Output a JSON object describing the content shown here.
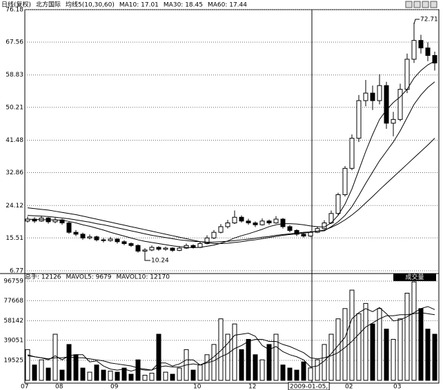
{
  "chart_data": [
    {
      "type": "candlestick",
      "header": [
        "日线(复权)",
        "北方国际",
        "均线5(10,30,60)",
        "MA10: 17.01",
        "MA30: 18.45",
        "MA60: 17.44"
      ],
      "categories": [
        "07",
        null,
        null,
        null,
        null,
        "08",
        null,
        null,
        null,
        null,
        null,
        null,
        null,
        "09",
        null,
        null,
        null,
        null,
        null,
        null,
        null,
        null,
        null,
        null,
        null,
        "10",
        null,
        null,
        null,
        null,
        null,
        null,
        null,
        "12",
        null,
        null,
        null,
        null,
        null,
        "2009-01-05,",
        null,
        null,
        null,
        null,
        null,
        null,
        null,
        "02",
        null,
        null,
        null,
        null,
        null,
        null,
        "03",
        null,
        null,
        null,
        null,
        null
      ],
      "open": [
        20.0,
        20.5,
        20.0,
        20.8,
        19.8,
        20.3,
        19.5,
        17.0,
        16.5,
        15.5,
        15.8,
        15.0,
        14.8,
        15.2,
        14.5,
        14.0,
        13.5,
        12.0,
        12.3,
        13.0,
        12.5,
        12.8,
        12.2,
        12.8,
        13.5,
        13.0,
        14.0,
        15.5,
        17.0,
        18.5,
        19.5,
        21.0,
        20.0,
        19.5,
        19.0,
        20.0,
        19.5,
        20.5,
        18.5,
        17.5,
        16.5,
        16.0,
        17.0,
        18.0,
        19.5,
        22.0,
        27.0,
        34.0,
        42.0,
        52.0,
        54.0,
        52.0,
        56.0,
        46.0,
        47.0,
        55.0,
        63.0,
        68.0,
        66.0,
        64.0
      ],
      "high": [
        21.2,
        21.0,
        21.4,
        21.0,
        20.9,
        20.6,
        19.8,
        17.6,
        16.9,
        16.4,
        16.1,
        15.5,
        15.8,
        15.4,
        14.9,
        14.3,
        13.8,
        12.8,
        13.5,
        13.3,
        13.2,
        13.0,
        13.3,
        14.0,
        13.8,
        14.5,
        16.2,
        17.6,
        19.2,
        20.3,
        22.8,
        21.5,
        20.6,
        19.9,
        20.7,
        20.4,
        21.3,
        20.8,
        18.9,
        17.8,
        16.9,
        17.4,
        18.6,
        20.2,
        22.8,
        27.5,
        34.6,
        43.0,
        53.5,
        57.5,
        56.0,
        59.0,
        57.0,
        49.0,
        56.5,
        64.5,
        72.71,
        69.5,
        67.5,
        65.0
      ],
      "low": [
        19.6,
        19.5,
        19.8,
        19.3,
        19.4,
        19.0,
        16.6,
        16.0,
        15.0,
        15.1,
        14.6,
        14.3,
        14.5,
        14.0,
        13.6,
        13.1,
        11.6,
        10.24,
        12.0,
        12.1,
        12.1,
        11.8,
        12.0,
        12.6,
        12.7,
        12.8,
        13.8,
        15.2,
        16.7,
        18.0,
        19.2,
        19.6,
        19.0,
        18.4,
        18.8,
        19.0,
        19.3,
        18.0,
        17.0,
        16.0,
        15.6,
        15.8,
        16.8,
        17.8,
        19.2,
        21.6,
        26.5,
        33.5,
        41.0,
        50.5,
        49.5,
        51.0,
        44.5,
        42.5,
        46.5,
        54.0,
        62.0,
        64.5,
        62.5,
        60.0
      ],
      "close": [
        20.5,
        20.0,
        20.8,
        19.8,
        20.3,
        19.5,
        17.0,
        16.5,
        15.5,
        15.8,
        15.0,
        14.8,
        15.2,
        14.5,
        14.0,
        13.5,
        12.0,
        12.3,
        13.0,
        12.5,
        12.8,
        12.2,
        12.8,
        13.5,
        13.0,
        14.0,
        15.5,
        17.0,
        18.5,
        19.5,
        21.0,
        20.0,
        19.5,
        19.0,
        20.0,
        19.5,
        20.5,
        18.5,
        17.5,
        16.5,
        16.0,
        17.0,
        18.0,
        19.5,
        22.0,
        27.0,
        34.0,
        42.0,
        52.0,
        54.0,
        52.0,
        56.0,
        46.0,
        47.0,
        55.0,
        63.0,
        68.0,
        66.0,
        64.0,
        62.0
      ],
      "series": [
        {
          "color": "#000000",
          "values": [
            20.5,
            20.4,
            20.4,
            20.3,
            20.3,
            20.2,
            19.9,
            19.5,
            19.0,
            18.6,
            18.1,
            17.6,
            17.0,
            16.5,
            16.0,
            15.5,
            15.0,
            14.6,
            14.3,
            14.0,
            13.7,
            13.4,
            13.2,
            13.0,
            12.9,
            13.0,
            13.3,
            13.6,
            14.1,
            14.7,
            15.5,
            16.1,
            16.6,
            17.2,
            17.8,
            18.5,
            19.0,
            19.3,
            19.3,
            19.2,
            19.0,
            18.7,
            18.5,
            18.4,
            19.5,
            21.5,
            24.5,
            28.5,
            33.5,
            38.5,
            43.0,
            47.0,
            49.5,
            51.5,
            53.0,
            55.0,
            58.0,
            60.0,
            61.5,
            62.5
          ]
        },
        {
          "color": "#000000",
          "values": [
            21.5,
            21.4,
            21.3,
            21.2,
            21.0,
            20.8,
            20.6,
            20.3,
            20.0,
            19.7,
            19.3,
            19.0,
            18.6,
            18.2,
            17.8,
            17.4,
            17.0,
            16.6,
            16.2,
            15.9,
            15.6,
            15.3,
            15.0,
            14.8,
            14.6,
            14.5,
            14.4,
            14.4,
            14.5,
            14.6,
            14.8,
            15.0,
            15.2,
            15.4,
            15.7,
            15.9,
            16.2,
            16.4,
            16.6,
            16.8,
            17.0,
            17.1,
            17.3,
            17.4,
            18.5,
            19.8,
            21.5,
            23.8,
            26.8,
            30.0,
            33.0,
            36.0,
            38.5,
            41.0,
            44.0,
            47.5,
            51.0,
            53.5,
            55.5,
            57.0
          ]
        },
        {
          "color": "#000000",
          "values": [
            23.5,
            23.3,
            23.1,
            22.9,
            22.6,
            22.3,
            22.0,
            21.7,
            21.3,
            20.9,
            20.5,
            20.1,
            19.7,
            19.3,
            18.9,
            18.5,
            18.1,
            17.7,
            17.3,
            16.9,
            16.5,
            16.1,
            15.7,
            15.3,
            14.9,
            14.5,
            14.2,
            14.0,
            14.0,
            14.1,
            14.3,
            14.5,
            14.8,
            15.0,
            15.3,
            15.6,
            15.9,
            16.2,
            16.4,
            16.6,
            16.8,
            17.0,
            17.3,
            17.6,
            18.3,
            19.2,
            20.3,
            21.6,
            23.1,
            24.8,
            26.5,
            28.3,
            30.0,
            31.7,
            33.4,
            35.1,
            36.8,
            38.5,
            40.2,
            42.0
          ]
        }
      ],
      "up_color": "#ffffff",
      "down_color": "#000000",
      "ylim": [
        6.77,
        76.18
      ],
      "yticks": [
        6.77,
        15.51,
        24.12,
        32.86,
        41.48,
        50.21,
        58.83,
        67.56,
        76.18
      ],
      "grid": true,
      "mark_extremes": true
    },
    {
      "type": "bar",
      "header": [
        "总手: 12126",
        "MAVOL5: 9679",
        "MAVOL10: 12170"
      ],
      "badge": "成交量",
      "values": [
        30000,
        15000,
        20000,
        12000,
        45000,
        10000,
        35000,
        25000,
        12000,
        8000,
        15000,
        10000,
        9000,
        8000,
        12000,
        6000,
        20000,
        5000,
        7000,
        45000,
        8000,
        6000,
        12000,
        30000,
        10000,
        15000,
        25000,
        35000,
        60000,
        45000,
        55000,
        30000,
        40000,
        25000,
        20000,
        35000,
        45000,
        15000,
        12000,
        10000,
        18000,
        12126,
        20000,
        35000,
        45000,
        60000,
        70000,
        88000,
        65000,
        75000,
        55000,
        70000,
        50000,
        40000,
        60000,
        85000,
        96000,
        70000,
        50000,
        45000
      ],
      "series": [
        {
          "color": "#000000",
          "values": [
            25000,
            23000,
            22000,
            20000,
            24000,
            20000,
            24000,
            25000,
            25000,
            18000,
            19000,
            14000,
            11000,
            10000,
            11000,
            9000,
            11000,
            10000,
            10000,
            17000,
            17000,
            14000,
            16000,
            20000,
            20000,
            15000,
            18000,
            23000,
            29000,
            36000,
            44000,
            45000,
            46000,
            43000,
            34000,
            30000,
            33000,
            28000,
            25000,
            23000,
            20000,
            13000,
            14000,
            19000,
            26000,
            34000,
            42000,
            60000,
            66000,
            70000,
            67000,
            71000,
            65000,
            58000,
            59000,
            62000,
            66000,
            70000,
            72000,
            69000
          ]
        },
        {
          "color": "#000000",
          "values": [
            24000,
            23000,
            22000,
            21000,
            22000,
            22000,
            23000,
            22000,
            22000,
            21000,
            20000,
            19000,
            17000,
            16000,
            15000,
            14000,
            12000,
            11000,
            10000,
            13000,
            14000,
            13000,
            13000,
            15000,
            16000,
            15000,
            17000,
            19000,
            23000,
            26000,
            31000,
            34000,
            38000,
            40000,
            40000,
            38000,
            38000,
            35000,
            33000,
            30000,
            27000,
            22000,
            21000,
            22000,
            24000,
            27000,
            32000,
            38000,
            45000,
            52000,
            56000,
            60000,
            63000,
            63000,
            64000,
            64000,
            65000,
            66000,
            65000,
            64000
          ]
        }
      ],
      "ylim": [
        0,
        96759
      ],
      "yticks": [
        19525,
        39051,
        58142,
        77668,
        96759
      ],
      "grid": true
    }
  ]
}
